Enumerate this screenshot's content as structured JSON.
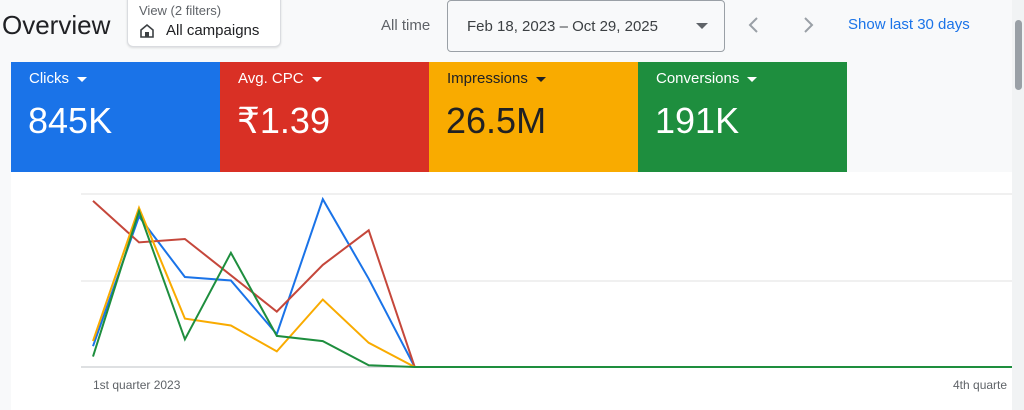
{
  "header": {
    "title": "Overview",
    "view": {
      "label": "View (2 filters)",
      "value": "All campaigns",
      "icon": "store-icon"
    },
    "range_label": "All time",
    "date_range": "Feb 18, 2023 – Oct 29, 2025",
    "show_last": "Show last 30 days"
  },
  "metrics": [
    {
      "label": "Clicks",
      "value": "845K",
      "color": "#1a73e8",
      "text_color": "#ffffff"
    },
    {
      "label": "Avg. CPC",
      "value": "₹1.39",
      "color": "#d93025",
      "text_color": "#ffffff"
    },
    {
      "label": "Impressions",
      "value": "26.5M",
      "color": "#f9ab00",
      "text_color": "#202124"
    },
    {
      "label": "Conversions",
      "value": "191K",
      "color": "#1e8e3e",
      "text_color": "#ffffff"
    }
  ],
  "chart_data": {
    "type": "line",
    "x_tick_labels": [
      "1st quarter 2023",
      "4th quarte"
    ],
    "grid": true,
    "series": [
      {
        "metric": "Clicks",
        "color": "#1a73e8",
        "values": [
          0.12,
          0.87,
          0.52,
          0.5,
          0.19,
          0.97,
          0.51,
          0,
          0,
          0,
          0,
          0,
          0,
          0,
          0,
          0,
          0,
          0,
          0,
          0,
          0
        ]
      },
      {
        "metric": "Avg. CPC",
        "color": "#c5473b",
        "values": [
          0.96,
          0.72,
          0.74,
          0.53,
          0.32,
          0.59,
          0.79,
          0,
          0,
          0,
          0,
          0,
          0,
          0,
          0,
          0,
          0,
          0,
          0,
          0,
          0
        ]
      },
      {
        "metric": "Impressions",
        "color": "#f9ab00",
        "values": [
          0.15,
          0.92,
          0.28,
          0.24,
          0.09,
          0.39,
          0.14,
          0,
          0,
          0,
          0,
          0,
          0,
          0,
          0,
          0,
          0,
          0,
          0,
          0,
          0
        ]
      },
      {
        "metric": "Conversions",
        "color": "#1e8e3e",
        "values": [
          0.06,
          0.9,
          0.16,
          0.66,
          0.18,
          0.15,
          0.01,
          0,
          0,
          0,
          0,
          0,
          0,
          0,
          0,
          0,
          0,
          0,
          0,
          0,
          0
        ]
      }
    ]
  }
}
